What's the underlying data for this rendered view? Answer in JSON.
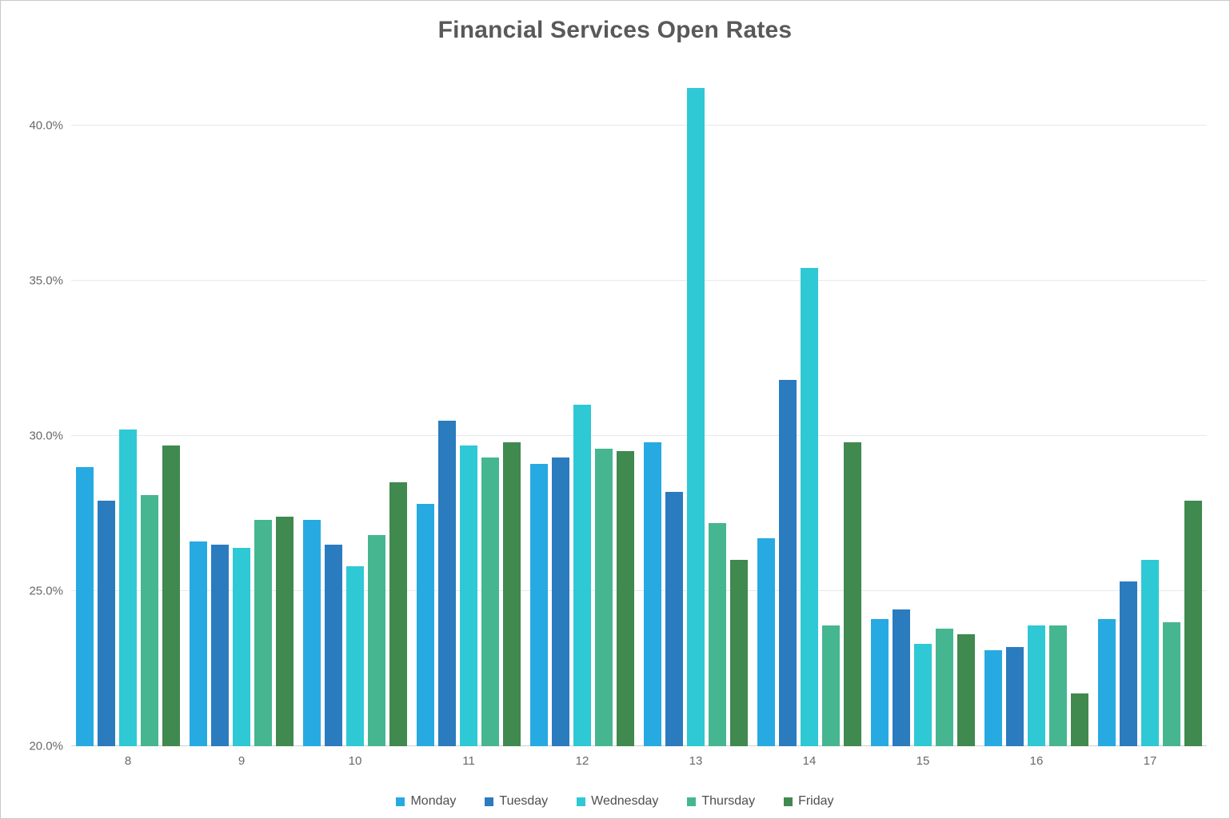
{
  "title": "Financial Services Open Rates",
  "chart_data": {
    "type": "bar",
    "title": "Financial Services Open Rates",
    "xlabel": "",
    "ylabel": "",
    "categories": [
      "8",
      "9",
      "10",
      "11",
      "12",
      "13",
      "14",
      "15",
      "16",
      "17"
    ],
    "series": [
      {
        "name": "Monday",
        "color": "#27aae1",
        "values": [
          29.0,
          26.6,
          27.3,
          27.8,
          29.1,
          29.8,
          26.7,
          24.1,
          23.1,
          24.1
        ]
      },
      {
        "name": "Tuesday",
        "color": "#2b7bbf",
        "values": [
          27.9,
          26.5,
          26.5,
          30.5,
          29.3,
          28.2,
          31.8,
          24.4,
          23.2,
          25.3
        ]
      },
      {
        "name": "Wednesday",
        "color": "#2fc8d5",
        "values": [
          30.2,
          26.4,
          25.8,
          29.7,
          31.0,
          41.2,
          35.4,
          23.3,
          23.9,
          26.0
        ]
      },
      {
        "name": "Thursday",
        "color": "#46b690",
        "values": [
          28.1,
          27.3,
          26.8,
          29.3,
          29.6,
          27.2,
          23.9,
          23.8,
          23.9,
          24.0
        ]
      },
      {
        "name": "Friday",
        "color": "#40894f",
        "values": [
          29.7,
          27.4,
          28.5,
          29.8,
          29.5,
          26.0,
          29.8,
          23.6,
          21.7,
          27.9
        ]
      }
    ],
    "ylim": [
      20,
      41.7
    ],
    "yticks": [
      20,
      25,
      30,
      35,
      40
    ],
    "ytick_labels": [
      "20.0%",
      "25.0%",
      "30.0%",
      "35.0%",
      "40.0%"
    ],
    "grid": "horizontal",
    "legend_position": "bottom",
    "colors": {
      "title_text": "#58595b",
      "axis_text": "#66696c",
      "legend_text": "#4d4f51",
      "gridline": "#e7e8ea",
      "baseline": "#cdd0d3",
      "background": "#ffffff",
      "frame_border": "#c9c9c9"
    }
  }
}
